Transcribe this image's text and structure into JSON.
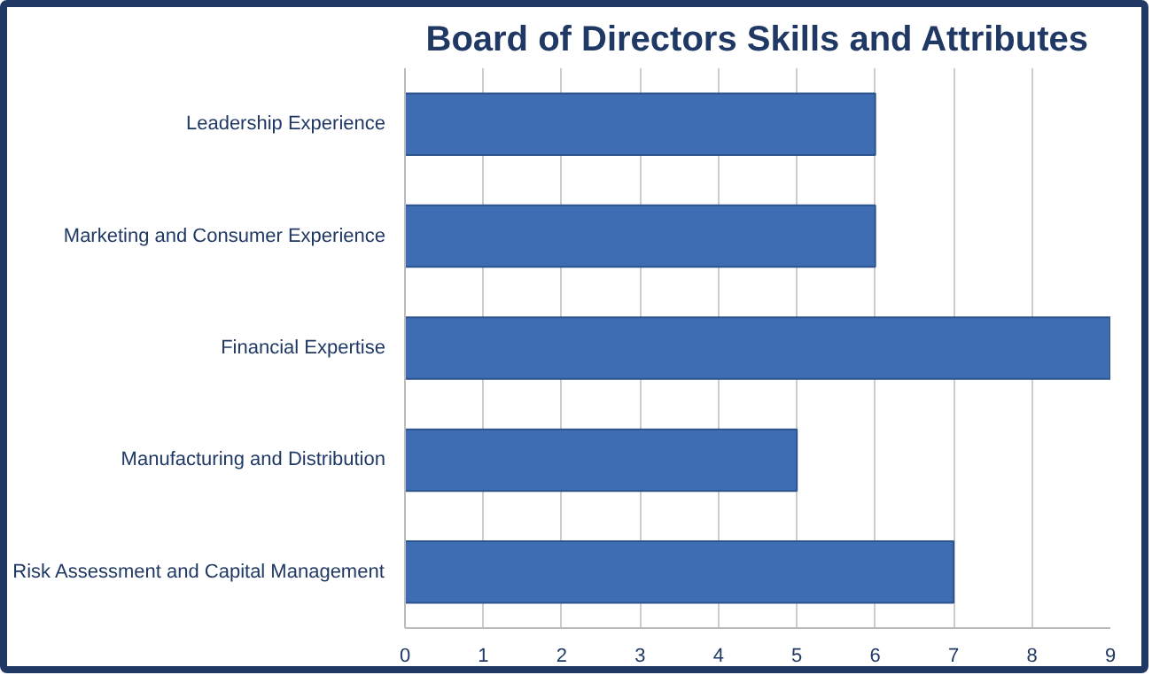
{
  "chart_data": {
    "type": "bar",
    "orientation": "horizontal",
    "title": "Board of Directors Skills and Attributes",
    "categories": [
      "Leadership Experience",
      "Marketing and Consumer Experience",
      "Financial Expertise",
      "Manufacturing and Distribution",
      "Risk Assessment and Capital Management"
    ],
    "values": [
      6,
      6,
      9,
      5,
      7
    ],
    "color": "#3e6db3",
    "xlim": [
      0,
      9
    ],
    "xticks": [
      0,
      1,
      2,
      3,
      4,
      5,
      6,
      7,
      8,
      9
    ],
    "grid": "x"
  }
}
